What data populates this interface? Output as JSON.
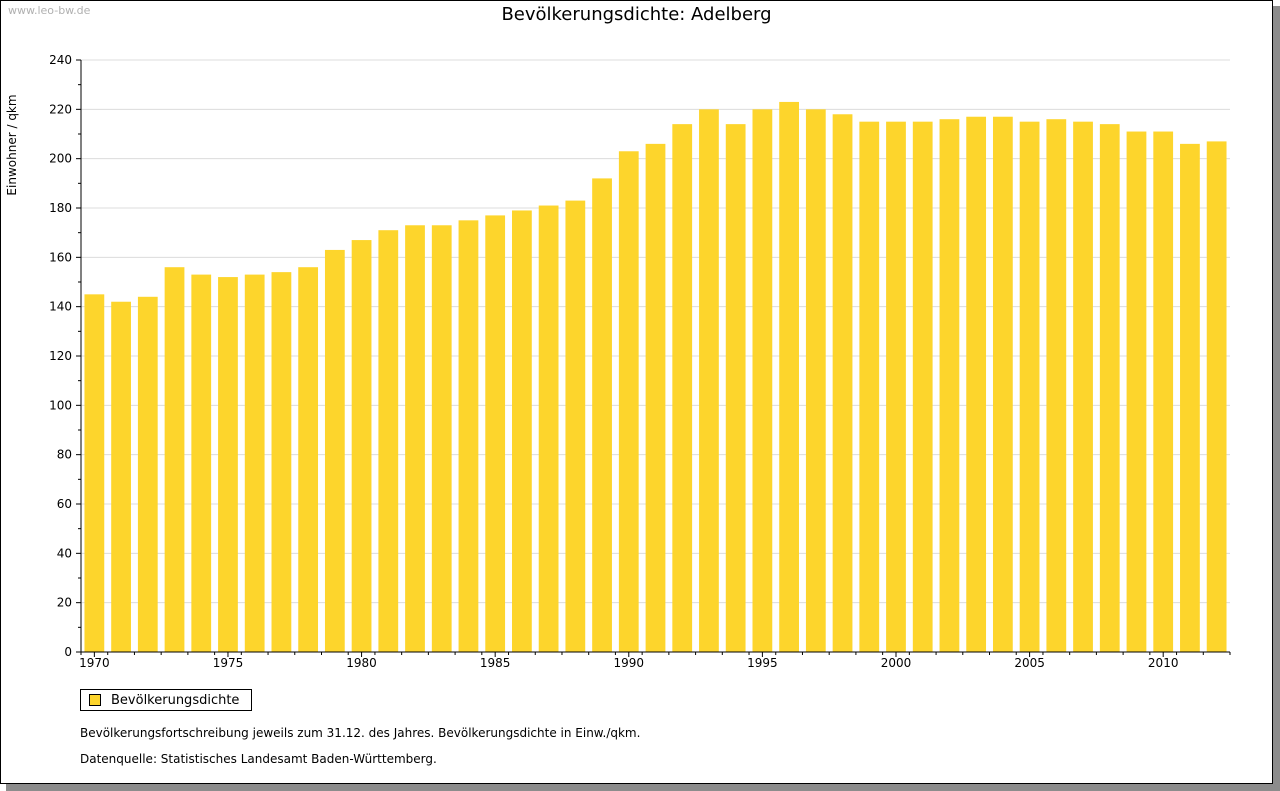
{
  "watermark": "www.leo-bw.de",
  "colors": {
    "bar": "#fdd52c",
    "grid": "#dcdcdc",
    "axis": "#000000"
  },
  "legend": {
    "label": "Bevölkerungsdichte",
    "color": "#fdd52c"
  },
  "notes": {
    "line1": "Bevölkerungsfortschreibung jeweils zum 31.12. des Jahres. Bevölkerungsdichte in Einw./qkm.",
    "line2": "Datenquelle: Statistisches Landesamt Baden-Württemberg."
  },
  "chart_data": {
    "type": "bar",
    "title": "Bevölkerungsdichte: Adelberg",
    "xlabel": "",
    "ylabel": "Einwohner / qkm",
    "ylim": [
      0,
      240
    ],
    "yticks": [
      0,
      20,
      40,
      60,
      80,
      100,
      120,
      140,
      160,
      180,
      200,
      220,
      240
    ],
    "xtick_labels": [
      "1970",
      "1975",
      "1980",
      "1985",
      "1990",
      "1995",
      "2000",
      "2005",
      "2010"
    ],
    "grid": true,
    "legend_position": "bottom-left",
    "categories": [
      1970,
      1971,
      1972,
      1973,
      1974,
      1975,
      1976,
      1977,
      1978,
      1979,
      1980,
      1981,
      1982,
      1983,
      1984,
      1985,
      1986,
      1987,
      1988,
      1989,
      1990,
      1991,
      1992,
      1993,
      1994,
      1995,
      1996,
      1997,
      1998,
      1999,
      2000,
      2001,
      2002,
      2003,
      2004,
      2005,
      2006,
      2007,
      2008,
      2009,
      2010,
      2011,
      2012
    ],
    "series": [
      {
        "name": "Bevölkerungsdichte",
        "values": [
          145,
          142,
          144,
          156,
          153,
          152,
          153,
          154,
          156,
          163,
          167,
          171,
          173,
          173,
          175,
          177,
          179,
          181,
          183,
          192,
          203,
          206,
          214,
          220,
          214,
          220,
          223,
          220,
          218,
          215,
          215,
          215,
          216,
          217,
          217,
          215,
          216,
          215,
          214,
          211,
          211,
          206,
          207
        ]
      }
    ]
  }
}
